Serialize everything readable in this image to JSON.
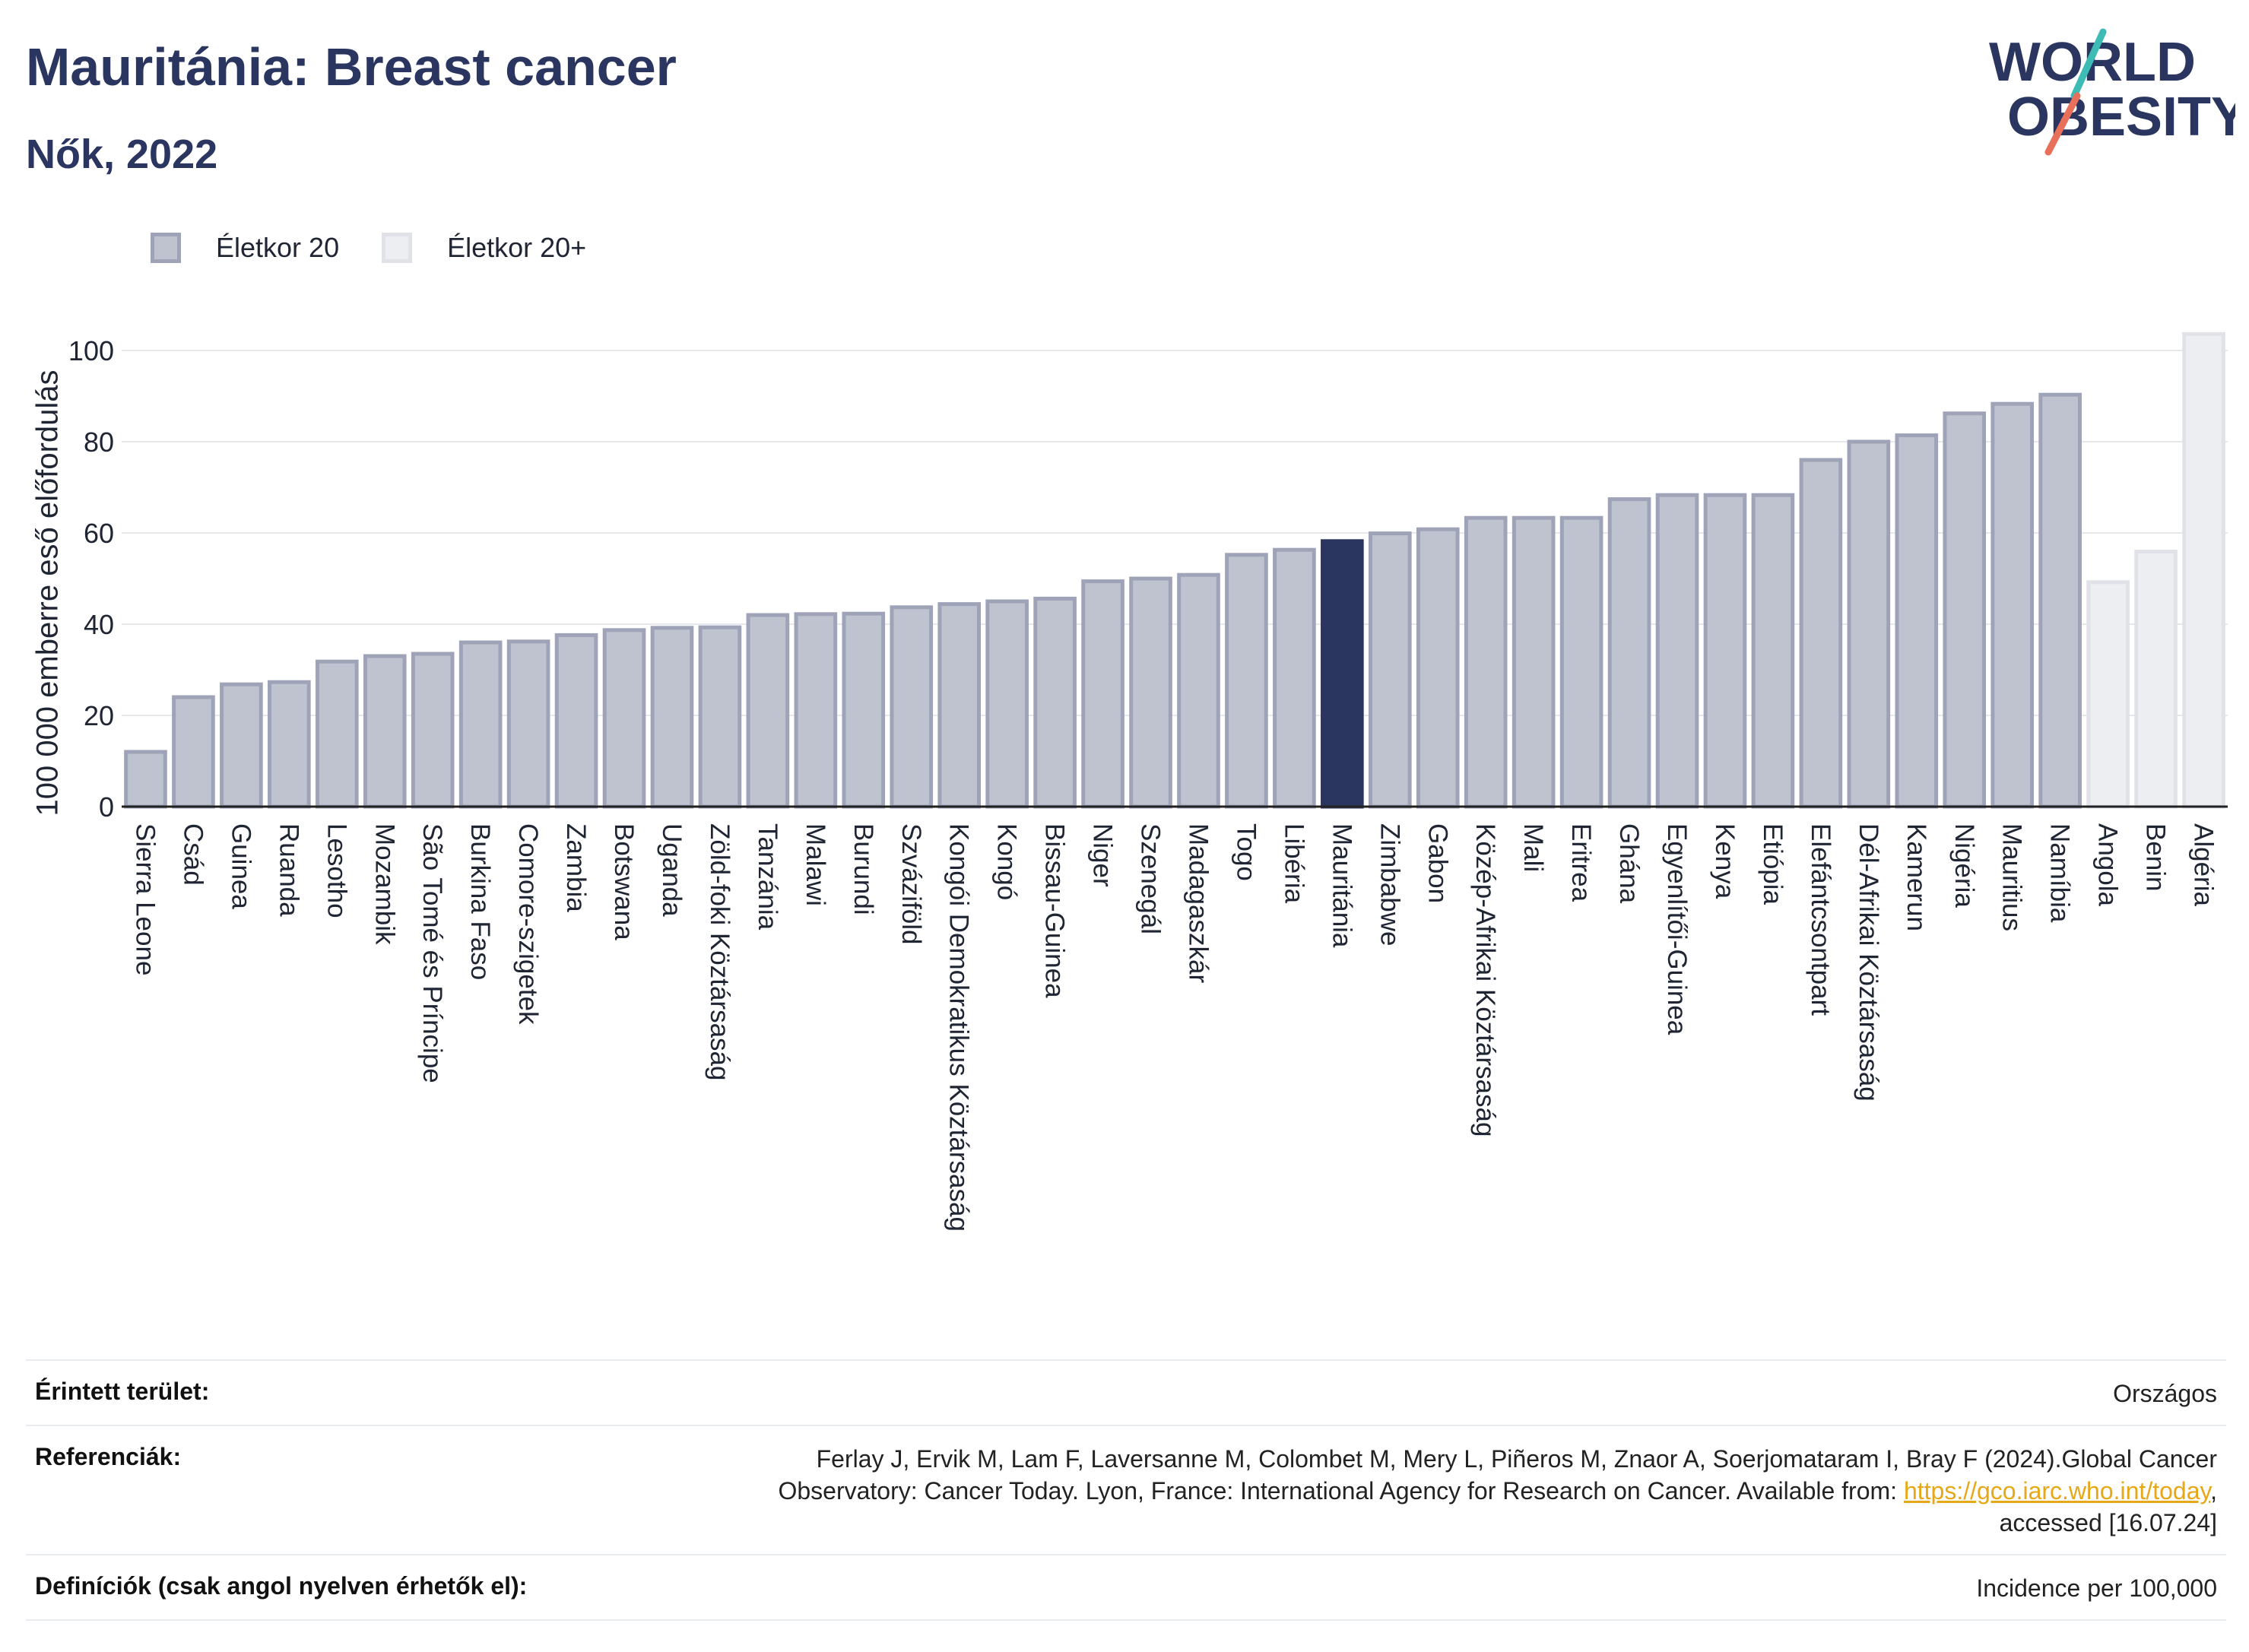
{
  "header": {
    "title": "Mauritánia: Breast cancer",
    "subtitle": "Nők, 2022"
  },
  "logo": {
    "line1": "WORLD",
    "line2": "OBESITY",
    "icon": "world-obesity-logo"
  },
  "colors": {
    "bar_fill": "#bfc3d0",
    "bar_border": "#9ea3b8",
    "highlight": "#2a3560",
    "light_fill": "#eceef2",
    "light_border": "#e0e2e8",
    "title": "#2a3560"
  },
  "legend": {
    "items": [
      {
        "label": "Életkor 20"
      },
      {
        "label": "Életkor 20+"
      }
    ]
  },
  "chart_data": {
    "type": "bar",
    "title": "Mauritánia: Breast cancer",
    "subtitle": "Nők, 2022",
    "ylabel": "100 000 emberre eső előfordulás",
    "xlabel": "",
    "ylim": [
      0,
      110
    ],
    "yticks": [
      0,
      20,
      40,
      60,
      80,
      100
    ],
    "grid": true,
    "legend_position": "top-left",
    "highlight_category": "Mauritánia",
    "series": [
      {
        "name": "Életkor 20"
      },
      {
        "name": "Életkor 20+"
      }
    ],
    "bars": [
      {
        "category": "Sierra Leone",
        "value": 12,
        "series": "Életkor 20"
      },
      {
        "category": "Csád",
        "value": 24,
        "series": "Életkor 20"
      },
      {
        "category": "Guinea",
        "value": 26.8,
        "series": "Életkor 20"
      },
      {
        "category": "Ruanda",
        "value": 27.3,
        "series": "Életkor 20"
      },
      {
        "category": "Lesotho",
        "value": 31.8,
        "series": "Életkor 20"
      },
      {
        "category": "Mozambik",
        "value": 33,
        "series": "Életkor 20"
      },
      {
        "category": "São Tomé és Príncipe",
        "value": 33.5,
        "series": "Életkor 20"
      },
      {
        "category": "Burkina Faso",
        "value": 36,
        "series": "Életkor 20"
      },
      {
        "category": "Comore-szigetek",
        "value": 36.2,
        "series": "Életkor 20"
      },
      {
        "category": "Zambia",
        "value": 37.6,
        "series": "Életkor 20"
      },
      {
        "category": "Botswana",
        "value": 38.7,
        "series": "Életkor 20"
      },
      {
        "category": "Uganda",
        "value": 39.2,
        "series": "Életkor 20"
      },
      {
        "category": "Zöld-foki Köztársaság",
        "value": 39.3,
        "series": "Életkor 20"
      },
      {
        "category": "Tanzánia",
        "value": 42,
        "series": "Életkor 20"
      },
      {
        "category": "Malawi",
        "value": 42.2,
        "series": "Életkor 20"
      },
      {
        "category": "Burundi",
        "value": 42.3,
        "series": "Életkor 20"
      },
      {
        "category": "Szváziföld",
        "value": 43.7,
        "series": "Életkor 20"
      },
      {
        "category": "Kongói Demokratikus Köztársaság",
        "value": 44.4,
        "series": "Életkor 20"
      },
      {
        "category": "Kongó",
        "value": 45,
        "series": "Életkor 20"
      },
      {
        "category": "Bissau-Guinea",
        "value": 45.6,
        "series": "Életkor 20"
      },
      {
        "category": "Niger",
        "value": 49.4,
        "series": "Életkor 20"
      },
      {
        "category": "Szenegál",
        "value": 50,
        "series": "Életkor 20"
      },
      {
        "category": "Madagaszkár",
        "value": 50.8,
        "series": "Életkor 20"
      },
      {
        "category": "Togo",
        "value": 55.2,
        "series": "Életkor 20"
      },
      {
        "category": "Libéria",
        "value": 56.3,
        "series": "Életkor 20"
      },
      {
        "category": "Mauritánia",
        "value": 58.2,
        "series": "Életkor 20"
      },
      {
        "category": "Zimbabwe",
        "value": 59.9,
        "series": "Életkor 20"
      },
      {
        "category": "Gabon",
        "value": 60.8,
        "series": "Életkor 20"
      },
      {
        "category": "Közép-Afrikai Köztársaság",
        "value": 63.3,
        "series": "Életkor 20"
      },
      {
        "category": "Mali",
        "value": 63.3,
        "series": "Életkor 20"
      },
      {
        "category": "Eritrea",
        "value": 63.3,
        "series": "Életkor 20"
      },
      {
        "category": "Ghána",
        "value": 67.4,
        "series": "Életkor 20"
      },
      {
        "category": "Egyenlítői-Guinea",
        "value": 68.3,
        "series": "Életkor 20"
      },
      {
        "category": "Kenya",
        "value": 68.3,
        "series": "Életkor 20"
      },
      {
        "category": "Etiópia",
        "value": 68.3,
        "series": "Életkor 20"
      },
      {
        "category": "Elefántcsontpart",
        "value": 76,
        "series": "Életkor 20"
      },
      {
        "category": "Dél-Afrikai Köztársaság",
        "value": 80,
        "series": "Életkor 20"
      },
      {
        "category": "Kamerun",
        "value": 81.4,
        "series": "Életkor 20"
      },
      {
        "category": "Nigéria",
        "value": 86.2,
        "series": "Életkor 20"
      },
      {
        "category": "Mauritius",
        "value": 88.3,
        "series": "Életkor 20"
      },
      {
        "category": "Namíbia",
        "value": 90.3,
        "series": "Életkor 20"
      },
      {
        "category": "Angola",
        "value": 49.2,
        "series": "Életkor 20+"
      },
      {
        "category": "Benin",
        "value": 55.9,
        "series": "Életkor 20+"
      },
      {
        "category": "Algéria",
        "value": 103.6,
        "series": "Életkor 20+"
      }
    ]
  },
  "info": {
    "area_label": "Érintett terület:",
    "area_value": "Országos",
    "refs_label": "Referenciák:",
    "refs_line1": "Ferlay J, Ervik M, Lam F, Laversanne M, Colombet M, Mery L, Piñeros M, Znaor A, Soerjomataram I, Bray F (2024).Global Cancer",
    "refs_line2": "Observatory: Cancer Today. Lyon, France: International Agency for Research on Cancer. Available from: ",
    "refs_link": "https://gco.iarc.who.int/today",
    "refs_line2_end": ",",
    "refs_line3": "accessed [16.07.24]",
    "defs_label": "Definíciók (csak angol nyelven érhetők el):",
    "defs_value": "Incidence per 100,000"
  }
}
